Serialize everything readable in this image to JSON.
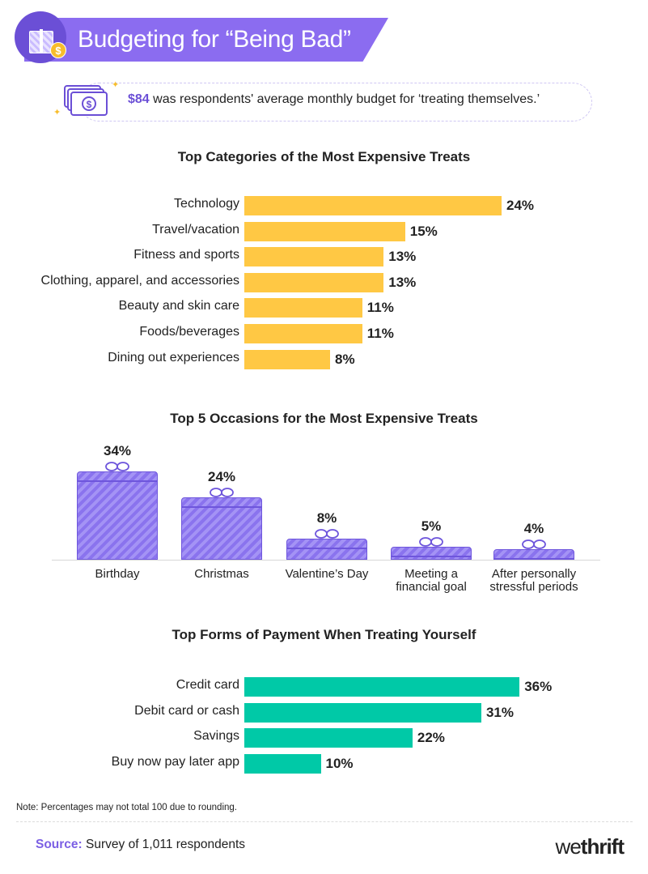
{
  "header": {
    "title": "Budgeting for “Being Bad”",
    "coin_symbol": "$"
  },
  "callout": {
    "amount": "$84",
    "text": " was respondents' average monthly budget for ‘treating themselves.’"
  },
  "colors": {
    "purple": "#8b6cf0",
    "yellow": "#ffc844",
    "teal": "#00c9a7"
  },
  "chart_data": [
    {
      "type": "bar",
      "orientation": "horizontal",
      "title": "Top Categories of the Most Expensive Treats",
      "categories": [
        "Technology",
        "Travel/vacation",
        "Fitness and sports",
        "Clothing, apparel, and accessories",
        "Beauty and skin care",
        "Foods/beverages",
        "Dining out experiences"
      ],
      "values": [
        24,
        15,
        13,
        13,
        11,
        11,
        8
      ],
      "labels": [
        "24%",
        "15%",
        "13%",
        "13%",
        "11%",
        "11%",
        "8%"
      ],
      "color": "#ffc844"
    },
    {
      "type": "bar",
      "orientation": "vertical",
      "title": "Top 5 Occasions for the Most Expensive Treats",
      "categories": [
        "Birthday",
        "Christmas",
        "Valentine’s Day",
        "Meeting a financial goal",
        "After personally stressful periods"
      ],
      "category_lines": [
        [
          "Birthday"
        ],
        [
          "Christmas"
        ],
        [
          "Valentine’s Day"
        ],
        [
          "Meeting a",
          "financial goal"
        ],
        [
          "After personally",
          "stressful periods"
        ]
      ],
      "values": [
        34,
        24,
        8,
        5,
        4
      ],
      "labels": [
        "34%",
        "24%",
        "8%",
        "5%",
        "4%"
      ],
      "color": "#8b6cf0"
    },
    {
      "type": "bar",
      "orientation": "horizontal",
      "title": "Top Forms of Payment When Treating Yourself",
      "categories": [
        "Credit card",
        "Debit card or cash",
        "Savings",
        "Buy now pay later app"
      ],
      "values": [
        36,
        31,
        22,
        10
      ],
      "labels": [
        "36%",
        "31%",
        "22%",
        "10%"
      ],
      "color": "#00c9a7"
    }
  ],
  "footer": {
    "note": "Note: Percentages may not total 100 due to rounding.",
    "source_label": "Source:",
    "source_text": " Survey of 1,011 respondents",
    "logo_we": "we",
    "logo_thrift": "thrift"
  }
}
